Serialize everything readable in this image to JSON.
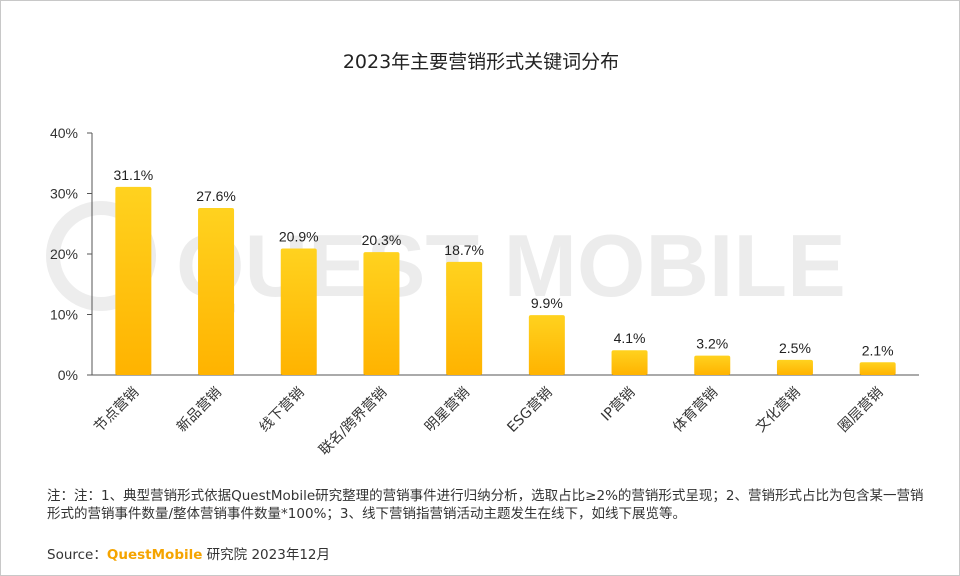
{
  "chart_data": {
    "type": "bar",
    "title": "2023年主要营销形式关键词分布",
    "categories": [
      "节点营销",
      "新品营销",
      "线下营销",
      "联名/跨界营销",
      "明星营销",
      "ESG营销",
      "IP营销",
      "体育营销",
      "文化营销",
      "圈层营销"
    ],
    "values": [
      31.1,
      27.6,
      20.9,
      20.3,
      18.7,
      9.9,
      4.1,
      3.2,
      2.5,
      2.1
    ],
    "value_labels": [
      "31.1%",
      "27.6%",
      "20.9%",
      "20.3%",
      "18.7%",
      "9.9%",
      "4.1%",
      "3.2%",
      "2.5%",
      "2.1%"
    ],
    "ylim": [
      0,
      40
    ],
    "yticks": [
      0,
      10,
      20,
      30,
      40
    ],
    "ytick_labels": [
      "0%",
      "10%",
      "20%",
      "30%",
      "40%"
    ],
    "xlabel": "",
    "ylabel": "",
    "grid": false,
    "colors": {
      "bar_top": "#ffd21f",
      "bar_bottom": "#ffb300",
      "axis": "#555555"
    }
  },
  "watermark": "QUEST MOBILE",
  "notes": "注：注：1、典型营销形式依据QuestMobile研究整理的营销事件进行归纳分析，选取占比≥2%的营销形式呈现；2、营销形式占比为包含某一营销形式的营销事件数量/整体营销事件数量*100%；3、线下营销指营销活动主题发生在线下，如线下展览等。",
  "source": {
    "label": "Source：",
    "brand": "QuestMobile",
    "rest": " 研究院 2023年12月"
  }
}
